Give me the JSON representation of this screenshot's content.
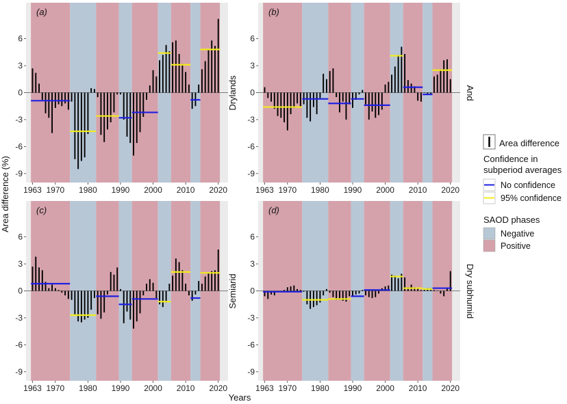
{
  "chart_data": {
    "type": "bar",
    "xlabel": "Years",
    "ylabel": "Area difference (%)",
    "xlim": [
      1961,
      2023
    ],
    "ylim": [
      -10,
      10
    ],
    "x_ticks": [
      1963,
      1970,
      1980,
      1990,
      2000,
      2010,
      2020
    ],
    "y_ticks": [
      -9,
      -6,
      -3,
      0,
      3,
      6
    ],
    "row_strips": [
      "Drylands",
      "Semiarid"
    ],
    "col_strips": [
      "And",
      "Dry subhumid"
    ],
    "phases": [
      {
        "phase": "Positive",
        "start": 1963,
        "end": 1975
      },
      {
        "phase": "Negative",
        "start": 1975,
        "end": 1983
      },
      {
        "phase": "Positive",
        "start": 1983,
        "end": 1990
      },
      {
        "phase": "Negative",
        "start": 1990,
        "end": 1994
      },
      {
        "phase": "Positive",
        "start": 1994,
        "end": 2002
      },
      {
        "phase": "Negative",
        "start": 2002,
        "end": 2006
      },
      {
        "phase": "Positive",
        "start": 2006,
        "end": 2012
      },
      {
        "phase": "Negative",
        "start": 2012,
        "end": 2015
      },
      {
        "phase": "Positive",
        "start": 2015,
        "end": 2021
      }
    ],
    "panels": [
      {
        "label": "(a)",
        "row": 0,
        "col": 0,
        "years": [
          1963,
          1964,
          1965,
          1966,
          1967,
          1968,
          1969,
          1970,
          1971,
          1972,
          1973,
          1974,
          1975,
          1976,
          1977,
          1978,
          1979,
          1980,
          1981,
          1982,
          1983,
          1984,
          1985,
          1986,
          1987,
          1988,
          1989,
          1990,
          1991,
          1992,
          1993,
          1994,
          1995,
          1996,
          1997,
          1998,
          1999,
          2000,
          2001,
          2002,
          2003,
          2004,
          2005,
          2006,
          2007,
          2008,
          2009,
          2010,
          2011,
          2012,
          2013,
          2014,
          2015,
          2016,
          2017,
          2018,
          2019,
          2020
        ],
        "values": [
          2.7,
          2.2,
          1.0,
          -0.8,
          -2.3,
          -2.8,
          -4.5,
          -1.7,
          -1.3,
          -1.5,
          -1.2,
          -1.9,
          -1.0,
          -7.4,
          -8.5,
          -7.6,
          -7.2,
          -4.6,
          0.5,
          0.4,
          -0.5,
          -4.7,
          -5.5,
          -4.1,
          -3.3,
          -2.2,
          -0.2,
          -0.2,
          -3.0,
          -4.9,
          -5.6,
          -7.0,
          -5.6,
          -4.4,
          -2.7,
          -0.8,
          0.8,
          2.5,
          1.8,
          3.6,
          4.2,
          5.3,
          4.6,
          5.6,
          5.8,
          4.3,
          3.2,
          2.3,
          0.9,
          -1.8,
          -1.5,
          0.9,
          2.6,
          3.5,
          4.8,
          5.8,
          5.2,
          8.2
        ],
        "averages": [
          {
            "start": 1963,
            "end": 1975,
            "value": -0.9,
            "confidence": "No confidence"
          },
          {
            "start": 1975,
            "end": 1983,
            "value": -4.3,
            "confidence": "95% confidence"
          },
          {
            "start": 1983,
            "end": 1990,
            "value": -2.6,
            "confidence": "95% confidence"
          },
          {
            "start": 1990,
            "end": 1994,
            "value": -2.8,
            "confidence": "No confidence"
          },
          {
            "start": 1994,
            "end": 2002,
            "value": -2.2,
            "confidence": "No confidence"
          },
          {
            "start": 2002,
            "end": 2006,
            "value": 4.4,
            "confidence": "95% confidence"
          },
          {
            "start": 2006,
            "end": 2012,
            "value": 3.1,
            "confidence": "95% confidence"
          },
          {
            "start": 2012,
            "end": 2015,
            "value": -0.8,
            "confidence": "No confidence"
          },
          {
            "start": 2015,
            "end": 2021,
            "value": 4.8,
            "confidence": "95% confidence"
          }
        ]
      },
      {
        "label": "(b)",
        "row": 0,
        "col": 1,
        "years": [
          1963,
          1964,
          1965,
          1966,
          1967,
          1968,
          1969,
          1970,
          1971,
          1972,
          1973,
          1974,
          1975,
          1976,
          1977,
          1978,
          1979,
          1980,
          1981,
          1982,
          1983,
          1984,
          1985,
          1986,
          1987,
          1988,
          1989,
          1990,
          1991,
          1992,
          1993,
          1994,
          1995,
          1996,
          1997,
          1998,
          1999,
          2000,
          2001,
          2002,
          2003,
          2004,
          2005,
          2006,
          2007,
          2008,
          2009,
          2010,
          2011,
          2012,
          2013,
          2014,
          2015,
          2016,
          2017,
          2018,
          2019,
          2020
        ],
        "values": [
          0.6,
          -0.6,
          -1.0,
          -1.8,
          -2.6,
          -2.8,
          -3.3,
          -4.2,
          -2.4,
          -1.7,
          -1.2,
          -1.5,
          -1.3,
          -2.8,
          -3.2,
          -1.6,
          -2.4,
          -0.6,
          2.1,
          1.5,
          2.4,
          2.7,
          -0.5,
          -2.2,
          -1.0,
          -3.0,
          -1.3,
          -1.7,
          -0.8,
          -0.2,
          0.3,
          -1.3,
          -3.0,
          -2.1,
          -2.8,
          -2.5,
          -1.9,
          0.9,
          1.2,
          2.0,
          2.9,
          4.2,
          5.1,
          4.3,
          1.4,
          1.0,
          0.7,
          -0.9,
          -1.0,
          0.0,
          -0.2,
          -0.2,
          1.8,
          2.0,
          2.6,
          3.6,
          3.7,
          1.5
        ],
        "averages": [
          {
            "start": 1963,
            "end": 1975,
            "value": -1.6,
            "confidence": "95% confidence"
          },
          {
            "start": 1975,
            "end": 1983,
            "value": -0.7,
            "confidence": "No confidence"
          },
          {
            "start": 1983,
            "end": 1990,
            "value": -1.2,
            "confidence": "No confidence"
          },
          {
            "start": 1990,
            "end": 1994,
            "value": -0.7,
            "confidence": "No confidence"
          },
          {
            "start": 1994,
            "end": 2002,
            "value": -1.4,
            "confidence": "No confidence"
          },
          {
            "start": 2002,
            "end": 2006,
            "value": 4.1,
            "confidence": "95% confidence"
          },
          {
            "start": 2006,
            "end": 2012,
            "value": 0.6,
            "confidence": "No confidence"
          },
          {
            "start": 2012,
            "end": 2015,
            "value": -0.2,
            "confidence": "No confidence"
          },
          {
            "start": 2015,
            "end": 2021,
            "value": 2.5,
            "confidence": "95% confidence"
          }
        ]
      },
      {
        "label": "(c)",
        "row": 1,
        "col": 0,
        "years": [
          1963,
          1964,
          1965,
          1966,
          1967,
          1968,
          1969,
          1970,
          1971,
          1972,
          1973,
          1974,
          1975,
          1976,
          1977,
          1978,
          1979,
          1980,
          1981,
          1982,
          1983,
          1984,
          1985,
          1986,
          1987,
          1988,
          1989,
          1990,
          1991,
          1992,
          1993,
          1994,
          1995,
          1996,
          1997,
          1998,
          1999,
          2000,
          2001,
          2002,
          2003,
          2004,
          2005,
          2006,
          2007,
          2008,
          2009,
          2010,
          2011,
          2012,
          2013,
          2014,
          2015,
          2016,
          2017,
          2018,
          2019,
          2020
        ],
        "values": [
          2.7,
          3.8,
          2.6,
          2.3,
          1.0,
          0.3,
          0.7,
          0.3,
          0.1,
          -0.2,
          -0.5,
          -0.9,
          -1.0,
          -2.6,
          -3.4,
          -3.5,
          -3.2,
          -3.0,
          -2.1,
          -0.8,
          -2.6,
          -3.1,
          -2.4,
          -0.4,
          2.1,
          1.8,
          2.6,
          0.2,
          -3.6,
          -2.3,
          -3.2,
          -4.2,
          -3.4,
          -2.5,
          -0.5,
          0.8,
          1.3,
          0.9,
          -0.8,
          -1.5,
          -1.8,
          -1.3,
          0.8,
          1.7,
          3.6,
          3.2,
          2.3,
          0.8,
          -0.5,
          -1.1,
          -0.4,
          1.1,
          0.8,
          1.6,
          2.0,
          2.2,
          2.3,
          4.6
        ],
        "averages": [
          {
            "start": 1963,
            "end": 1975,
            "value": 0.8,
            "confidence": "No confidence"
          },
          {
            "start": 1975,
            "end": 1983,
            "value": -2.7,
            "confidence": "95% confidence"
          },
          {
            "start": 1983,
            "end": 1990,
            "value": -0.6,
            "confidence": "No confidence"
          },
          {
            "start": 1990,
            "end": 1994,
            "value": -1.5,
            "confidence": "No confidence"
          },
          {
            "start": 1994,
            "end": 2002,
            "value": -0.9,
            "confidence": "No confidence"
          },
          {
            "start": 2002,
            "end": 2006,
            "value": -1.2,
            "confidence": "95% confidence"
          },
          {
            "start": 2006,
            "end": 2012,
            "value": 2.1,
            "confidence": "95% confidence"
          },
          {
            "start": 2012,
            "end": 2015,
            "value": -0.8,
            "confidence": "No confidence"
          },
          {
            "start": 2015,
            "end": 2021,
            "value": 2.0,
            "confidence": "95% confidence"
          }
        ]
      },
      {
        "label": "(d)",
        "row": 1,
        "col": 1,
        "years": [
          1963,
          1964,
          1965,
          1966,
          1967,
          1968,
          1969,
          1970,
          1971,
          1972,
          1973,
          1974,
          1975,
          1976,
          1977,
          1978,
          1979,
          1980,
          1981,
          1982,
          1983,
          1984,
          1985,
          1986,
          1987,
          1988,
          1989,
          1990,
          1991,
          1992,
          1993,
          1994,
          1995,
          1996,
          1997,
          1998,
          1999,
          2000,
          2001,
          2002,
          2003,
          2004,
          2005,
          2006,
          2007,
          2008,
          2009,
          2010,
          2011,
          2012,
          2013,
          2014,
          2015,
          2016,
          2017,
          2018,
          2019,
          2020
        ],
        "values": [
          -0.6,
          -0.9,
          -0.4,
          -0.5,
          -0.1,
          -0.1,
          0.1,
          0.4,
          0.5,
          0.6,
          0.2,
          0.1,
          -0.1,
          -1.5,
          -2.0,
          -1.8,
          -1.6,
          -1.3,
          -0.5,
          0.2,
          -0.2,
          -0.7,
          -1.0,
          -1.0,
          -1.1,
          -1.2,
          -0.6,
          -0.6,
          -0.4,
          -0.3,
          0.1,
          -0.5,
          -0.7,
          -0.8,
          -0.7,
          -0.3,
          0.3,
          0.5,
          0.6,
          1.8,
          1.7,
          1.4,
          1.9,
          1.5,
          0.4,
          0.7,
          0.4,
          0.3,
          0.1,
          0.2,
          0.3,
          0.3,
          0.1,
          0.0,
          -0.3,
          -0.6,
          0.3,
          2.2
        ],
        "averages": [
          {
            "start": 1963,
            "end": 1975,
            "value": -0.1,
            "confidence": "No confidence"
          },
          {
            "start": 1975,
            "end": 1983,
            "value": -1.0,
            "confidence": "95% confidence"
          },
          {
            "start": 1983,
            "end": 1990,
            "value": -0.9,
            "confidence": "95% confidence"
          },
          {
            "start": 1990,
            "end": 1994,
            "value": -0.6,
            "confidence": "No confidence"
          },
          {
            "start": 1994,
            "end": 2002,
            "value": 0.1,
            "confidence": "No confidence"
          },
          {
            "start": 2002,
            "end": 2006,
            "value": 1.6,
            "confidence": "95% confidence"
          },
          {
            "start": 2006,
            "end": 2012,
            "value": 0.3,
            "confidence": "95% confidence"
          },
          {
            "start": 2012,
            "end": 2015,
            "value": 0.2,
            "confidence": "95% confidence"
          },
          {
            "start": 2015,
            "end": 2021,
            "value": 0.3,
            "confidence": "No confidence"
          }
        ]
      }
    ],
    "legend": {
      "bar_entry": "Area difference",
      "confidence_title_line1": "Confidence in",
      "confidence_title_line2": "subperiod averages",
      "confidence_items": [
        {
          "label": "No confidence",
          "color": "#1f1fe0"
        },
        {
          "label": "95% confidence",
          "color": "#f2ec1a"
        }
      ],
      "phase_title": "SAOD phases",
      "phase_items": [
        {
          "label": "Negative",
          "color": "#b8c7d6"
        },
        {
          "label": "Positive",
          "color": "#d5a2ac"
        }
      ]
    },
    "colors": {
      "panel_bg": "#ebebeb",
      "bar": "#000000",
      "zero_line": "#555555"
    }
  }
}
